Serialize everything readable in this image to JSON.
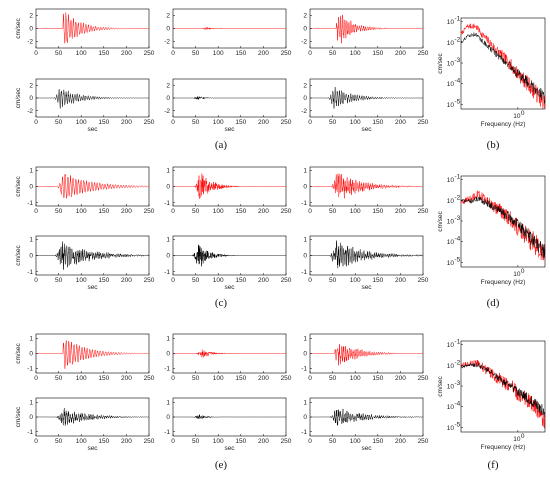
{
  "figure": {
    "panel_labels": [
      "(a)",
      "(b)",
      "(c)",
      "(d)",
      "(e)",
      "(f)"
    ]
  },
  "chart_data": [
    {
      "panel": "(a)",
      "type": "line",
      "component": "left",
      "color": "#ff0000",
      "ylabel": "cm/sec",
      "xlabel": "",
      "xlim": [
        0,
        250
      ],
      "ylim": [
        -3,
        3
      ],
      "xticks": [
        0,
        50,
        100,
        150,
        200,
        250
      ],
      "yticks": [
        -2,
        0,
        2
      ],
      "signal": {
        "onset": 60,
        "peak_t": 64,
        "peak_amp": 2.8,
        "dur": 150,
        "decay": 35,
        "freq": 0.18,
        "noise": 0.2
      }
    },
    {
      "panel": "(a)",
      "type": "line",
      "component": "middle",
      "color": "#ff0000",
      "ylabel": "",
      "xlabel": "",
      "xlim": [
        0,
        250
      ],
      "ylim": [
        -3,
        3
      ],
      "xticks": [
        0,
        50,
        100,
        150,
        200,
        250
      ],
      "yticks": [
        -2,
        0,
        2
      ],
      "signal": {
        "onset": 55,
        "peak_t": 75,
        "peak_amp": 0.25,
        "dur": 60,
        "decay": 18,
        "freq": 0.9,
        "noise": 0.7
      }
    },
    {
      "panel": "(a)",
      "type": "line",
      "component": "right",
      "color": "#ff0000",
      "ylabel": "",
      "xlabel": "",
      "xlim": [
        0,
        250
      ],
      "ylim": [
        -3,
        3
      ],
      "xticks": [
        0,
        50,
        100,
        150,
        200,
        250
      ],
      "yticks": [
        -2,
        0,
        2
      ],
      "signal": {
        "onset": 58,
        "peak_t": 66,
        "peak_amp": 2.8,
        "dur": 150,
        "decay": 30,
        "freq": 0.22,
        "noise": 0.35
      }
    },
    {
      "panel": "(a)",
      "type": "line",
      "component": "left",
      "color": "#000000",
      "ylabel": "cm/sec",
      "xlabel": "sec",
      "xlim": [
        0,
        250
      ],
      "ylim": [
        -3,
        3
      ],
      "xticks": [
        0,
        50,
        100,
        150,
        200,
        250
      ],
      "yticks": [
        -2,
        0,
        2
      ],
      "signal": {
        "onset": 35,
        "peak_t": 55,
        "peak_amp": 1.8,
        "dur": 170,
        "decay": 40,
        "freq": 0.2,
        "noise": 0.35
      }
    },
    {
      "panel": "(a)",
      "type": "line",
      "component": "middle",
      "color": "#000000",
      "ylabel": "",
      "xlabel": "sec",
      "xlim": [
        0,
        250
      ],
      "ylim": [
        -3,
        3
      ],
      "xticks": [
        0,
        50,
        100,
        150,
        200,
        250
      ],
      "yticks": [
        -2,
        0,
        2
      ],
      "signal": {
        "onset": 40,
        "peak_t": 55,
        "peak_amp": 0.35,
        "dur": 60,
        "decay": 15,
        "freq": 0.8,
        "noise": 0.8
      }
    },
    {
      "panel": "(a)",
      "type": "line",
      "component": "right",
      "color": "#000000",
      "ylabel": "",
      "xlabel": "sec",
      "xlim": [
        0,
        250
      ],
      "ylim": [
        -3,
        3
      ],
      "xticks": [
        0,
        50,
        100,
        150,
        200,
        250
      ],
      "yticks": [
        -2,
        0,
        2
      ],
      "signal": {
        "onset": 35,
        "peak_t": 55,
        "peak_amp": 1.9,
        "dur": 170,
        "decay": 40,
        "freq": 0.2,
        "noise": 0.35
      }
    },
    {
      "panel": "(c)",
      "type": "line",
      "component": "left",
      "color": "#ff0000",
      "ylabel": "cm/sec",
      "xlabel": "",
      "xlim": [
        0,
        250
      ],
      "ylim": [
        -1.2,
        1.2
      ],
      "xticks": [
        0,
        50,
        100,
        150,
        200,
        250
      ],
      "yticks": [
        -1,
        0,
        1
      ],
      "signal": {
        "onset": 40,
        "peak_t": 62,
        "peak_amp": 0.9,
        "dur": 200,
        "decay": 60,
        "freq": 0.17,
        "noise": 0.15
      }
    },
    {
      "panel": "(c)",
      "type": "line",
      "component": "middle",
      "color": "#ff0000",
      "ylabel": "",
      "xlabel": "",
      "xlim": [
        0,
        250
      ],
      "ylim": [
        -1.2,
        1.2
      ],
      "xticks": [
        0,
        50,
        100,
        150,
        200,
        250
      ],
      "yticks": [
        -1,
        0,
        1
      ],
      "signal": {
        "onset": 40,
        "peak_t": 62,
        "peak_amp": 0.95,
        "dur": 120,
        "decay": 25,
        "freq": 0.9,
        "noise": 0.8
      }
    },
    {
      "panel": "(c)",
      "type": "line",
      "component": "right",
      "color": "#ff0000",
      "ylabel": "",
      "xlabel": "",
      "xlim": [
        0,
        250
      ],
      "ylim": [
        -1.2,
        1.2
      ],
      "xticks": [
        0,
        50,
        100,
        150,
        200,
        250
      ],
      "yticks": [
        -1,
        0,
        1
      ],
      "signal": {
        "onset": 38,
        "peak_t": 62,
        "peak_amp": 1.0,
        "dur": 200,
        "decay": 50,
        "freq": 0.25,
        "noise": 0.45
      }
    },
    {
      "panel": "(c)",
      "type": "line",
      "component": "left",
      "color": "#000000",
      "ylabel": "cm/sec",
      "xlabel": "sec",
      "xlim": [
        0,
        250
      ],
      "ylim": [
        -1.2,
        1.2
      ],
      "xticks": [
        0,
        50,
        100,
        150,
        200,
        250
      ],
      "yticks": [
        -1,
        0,
        1
      ],
      "signal": {
        "onset": 35,
        "peak_t": 58,
        "peak_amp": 1.0,
        "dur": 210,
        "decay": 60,
        "freq": 0.25,
        "noise": 0.5
      }
    },
    {
      "panel": "(c)",
      "type": "line",
      "component": "middle",
      "color": "#000000",
      "ylabel": "",
      "xlabel": "sec",
      "xlim": [
        0,
        250
      ],
      "ylim": [
        -1.2,
        1.2
      ],
      "xticks": [
        0,
        50,
        100,
        150,
        200,
        250
      ],
      "yticks": [
        -1,
        0,
        1
      ],
      "signal": {
        "onset": 38,
        "peak_t": 58,
        "peak_amp": 0.85,
        "dur": 120,
        "decay": 22,
        "freq": 0.9,
        "noise": 0.8
      }
    },
    {
      "panel": "(c)",
      "type": "line",
      "component": "right",
      "color": "#000000",
      "ylabel": "",
      "xlabel": "sec",
      "xlim": [
        0,
        250
      ],
      "ylim": [
        -1.2,
        1.2
      ],
      "xticks": [
        0,
        50,
        100,
        150,
        200,
        250
      ],
      "yticks": [
        -1,
        0,
        1
      ],
      "signal": {
        "onset": 35,
        "peak_t": 58,
        "peak_amp": 1.0,
        "dur": 210,
        "decay": 60,
        "freq": 0.25,
        "noise": 0.5
      }
    },
    {
      "panel": "(e)",
      "type": "line",
      "component": "left",
      "color": "#ff0000",
      "ylabel": "cm/sec",
      "xlabel": "",
      "xlim": [
        0,
        250
      ],
      "ylim": [
        -1.3,
        1.3
      ],
      "xticks": [
        0,
        50,
        100,
        150,
        200,
        250
      ],
      "yticks": [
        -1,
        0,
        1
      ],
      "signal": {
        "onset": 60,
        "peak_t": 64,
        "peak_amp": 1.15,
        "dur": 180,
        "decay": 45,
        "freq": 0.17,
        "noise": 0.15
      }
    },
    {
      "panel": "(e)",
      "type": "line",
      "component": "middle",
      "color": "#ff0000",
      "ylabel": "",
      "xlabel": "",
      "xlim": [
        0,
        250
      ],
      "ylim": [
        -1.3,
        1.3
      ],
      "xticks": [
        0,
        50,
        100,
        150,
        200,
        250
      ],
      "yticks": [
        -1,
        0,
        1
      ],
      "signal": {
        "onset": 45,
        "peak_t": 65,
        "peak_amp": 0.3,
        "dur": 90,
        "decay": 22,
        "freq": 0.9,
        "noise": 0.8
      }
    },
    {
      "panel": "(e)",
      "type": "line",
      "component": "right",
      "color": "#ff0000",
      "ylabel": "",
      "xlabel": "",
      "xlim": [
        0,
        250
      ],
      "ylim": [
        -1.3,
        1.3
      ],
      "xticks": [
        0,
        50,
        100,
        150,
        200,
        250
      ],
      "yticks": [
        -1,
        0,
        1
      ],
      "signal": {
        "onset": 55,
        "peak_t": 64,
        "peak_amp": 1.0,
        "dur": 180,
        "decay": 40,
        "freq": 0.22,
        "noise": 0.4
      }
    },
    {
      "panel": "(e)",
      "type": "line",
      "component": "left",
      "color": "#000000",
      "ylabel": "cm/sec",
      "xlabel": "sec",
      "xlim": [
        0,
        250
      ],
      "ylim": [
        -1.3,
        1.3
      ],
      "xticks": [
        0,
        50,
        100,
        150,
        200,
        250
      ],
      "yticks": [
        -1,
        0,
        1
      ],
      "signal": {
        "onset": 35,
        "peak_t": 60,
        "peak_amp": 0.7,
        "dur": 200,
        "decay": 55,
        "freq": 0.22,
        "noise": 0.5
      }
    },
    {
      "panel": "(e)",
      "type": "line",
      "component": "middle",
      "color": "#000000",
      "ylabel": "",
      "xlabel": "sec",
      "xlim": [
        0,
        250
      ],
      "ylim": [
        -1.3,
        1.3
      ],
      "xticks": [
        0,
        50,
        100,
        150,
        200,
        250
      ],
      "yticks": [
        -1,
        0,
        1
      ],
      "signal": {
        "onset": 40,
        "peak_t": 58,
        "peak_amp": 0.18,
        "dur": 70,
        "decay": 18,
        "freq": 0.9,
        "noise": 0.8
      }
    },
    {
      "panel": "(e)",
      "type": "line",
      "component": "right",
      "color": "#000000",
      "ylabel": "",
      "xlabel": "sec",
      "xlim": [
        0,
        250
      ],
      "ylim": [
        -1.3,
        1.3
      ],
      "xticks": [
        0,
        50,
        100,
        150,
        200,
        250
      ],
      "yticks": [
        -1,
        0,
        1
      ],
      "signal": {
        "onset": 35,
        "peak_t": 60,
        "peak_amp": 0.75,
        "dur": 200,
        "decay": 55,
        "freq": 0.22,
        "noise": 0.5
      }
    },
    {
      "panel": "(b)",
      "type": "line",
      "scale": "loglog",
      "xlabel": "Frequency (Hz)",
      "ylabel": "cm/sec",
      "xlim": [
        0.1,
        3
      ],
      "ylim": [
        6e-06,
        0.15
      ],
      "xtick_label": "10",
      "xtick_sup": "0",
      "yticks": [
        {
          "base": "10",
          "sup": "-1"
        },
        {
          "base": "10",
          "sup": "-2"
        },
        {
          "base": "10",
          "sup": "-3"
        },
        {
          "base": "10",
          "sup": "-4"
        },
        {
          "base": "10",
          "sup": "-5"
        }
      ],
      "series": [
        {
          "color": "#ff0000",
          "points": [
            [
              0.1,
              0.025
            ],
            [
              0.13,
              0.06
            ],
            [
              0.18,
              0.06
            ],
            [
              0.25,
              0.02
            ],
            [
              0.4,
              0.005
            ],
            [
              0.7,
              0.001
            ],
            [
              1,
              0.0003
            ],
            [
              1.5,
              0.0001
            ],
            [
              2.2,
              3e-05
            ],
            [
              3,
              1e-05
            ]
          ],
          "noise": 0.6
        },
        {
          "color": "#000000",
          "points": [
            [
              0.1,
              0.01
            ],
            [
              0.13,
              0.02
            ],
            [
              0.18,
              0.025
            ],
            [
              0.25,
              0.01
            ],
            [
              0.4,
              0.003
            ],
            [
              0.7,
              0.0008
            ],
            [
              1,
              0.0003
            ],
            [
              1.5,
              0.00012
            ],
            [
              2.2,
              5e-05
            ],
            [
              3,
              2e-05
            ]
          ],
          "noise": 0.4
        }
      ]
    },
    {
      "panel": "(d)",
      "type": "line",
      "scale": "loglog",
      "xlabel": "Frequency (Hz)",
      "ylabel": "cm/sec",
      "xlim": [
        0.1,
        3
      ],
      "ylim": [
        6e-06,
        0.15
      ],
      "xtick_label": "10",
      "xtick_sup": "0",
      "yticks": [
        {
          "base": "10",
          "sup": "-1"
        },
        {
          "base": "10",
          "sup": "-2"
        },
        {
          "base": "10",
          "sup": "-3"
        },
        {
          "base": "10",
          "sup": "-4"
        },
        {
          "base": "10",
          "sup": "-5"
        }
      ],
      "series": [
        {
          "color": "#ff0000",
          "points": [
            [
              0.1,
              0.008
            ],
            [
              0.15,
              0.012
            ],
            [
              0.2,
              0.02
            ],
            [
              0.3,
              0.008
            ],
            [
              0.5,
              0.003
            ],
            [
              0.8,
              0.001
            ],
            [
              1.2,
              0.0003
            ],
            [
              2,
              8e-05
            ],
            [
              3,
              2e-05
            ]
          ],
          "noise": 0.8
        },
        {
          "color": "#000000",
          "points": [
            [
              0.1,
              0.01
            ],
            [
              0.15,
              0.009
            ],
            [
              0.2,
              0.012
            ],
            [
              0.3,
              0.007
            ],
            [
              0.5,
              0.003
            ],
            [
              0.8,
              0.0012
            ],
            [
              1.2,
              0.0004
            ],
            [
              2,
              0.0001
            ],
            [
              3,
              3e-05
            ]
          ],
          "noise": 0.5
        }
      ]
    },
    {
      "panel": "(f)",
      "type": "line",
      "scale": "loglog",
      "xlabel": "Frequency (Hz)",
      "ylabel": "cm/sec",
      "xlim": [
        0.1,
        3
      ],
      "ylim": [
        6e-06,
        0.15
      ],
      "xtick_label": "10",
      "xtick_sup": "0",
      "yticks": [
        {
          "base": "10",
          "sup": "-1"
        },
        {
          "base": "10",
          "sup": "-2"
        },
        {
          "base": "10",
          "sup": "-3"
        },
        {
          "base": "10",
          "sup": "-4"
        },
        {
          "base": "10",
          "sup": "-5"
        }
      ],
      "series": [
        {
          "color": "#ff0000",
          "points": [
            [
              0.1,
              0.01
            ],
            [
              0.14,
              0.012
            ],
            [
              0.2,
              0.012
            ],
            [
              0.3,
              0.005
            ],
            [
              0.5,
              0.002
            ],
            [
              0.8,
              0.0008
            ],
            [
              1.2,
              0.0003
            ],
            [
              2,
              0.0001
            ],
            [
              3,
              2e-05
            ]
          ],
          "noise": 0.7
        },
        {
          "color": "#000000",
          "points": [
            [
              0.1,
              0.008
            ],
            [
              0.14,
              0.011
            ],
            [
              0.2,
              0.01
            ],
            [
              0.3,
              0.006
            ],
            [
              0.5,
              0.002
            ],
            [
              0.8,
              0.0008
            ],
            [
              1.2,
              0.0004
            ],
            [
              2,
              0.00015
            ],
            [
              3,
              5e-05
            ]
          ],
          "noise": 0.4
        }
      ]
    }
  ]
}
